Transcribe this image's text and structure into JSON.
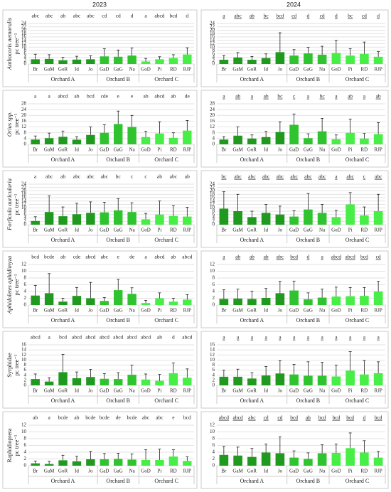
{
  "header": [
    "2023",
    "2024"
  ],
  "chart_data": [
    {
      "type": "bar",
      "ylabel": "Anthocoris nemoralis",
      "yunit": "pc tree⁻¹",
      "italic": true,
      "underline": false,
      "ylim": [
        0,
        24
      ],
      "yticks": [
        0,
        2,
        4,
        6,
        8,
        10,
        12,
        14,
        16,
        18,
        20,
        22,
        24
      ],
      "grid": true,
      "groups": [
        {
          "name": "Orchard A",
          "color": "#1f9a1f",
          "categories": [
            "Br",
            "GaM",
            "GoR",
            "Id",
            "Jo"
          ]
        },
        {
          "name": "Orchard B",
          "color": "#2fc42f",
          "categories": [
            "GaD",
            "GaG",
            "Na"
          ]
        },
        {
          "name": "Orchard C",
          "color": "#46ee46",
          "categories": [
            "GoD",
            "Pi",
            "RD",
            "RJP"
          ]
        }
      ],
      "series": [
        {
          "values": [
            2.8,
            3,
            2.2,
            2.6,
            2.8,
            4.5,
            4.3,
            5,
            1.5,
            2.8,
            3.5,
            5.6
          ],
          "errors": [
            3,
            2.5,
            1.8,
            2,
            2,
            4.5,
            4,
            4.5,
            1.8,
            1.5,
            2,
            4
          ]
        }
      ],
      "annotations": [
        "abc",
        "abc",
        "ab",
        "abc",
        "abc",
        "cd",
        "cd",
        "d",
        "a",
        "abcd",
        "bcd",
        "d"
      ]
    },
    {
      "type": "bar",
      "underline": true,
      "ylim": [
        0,
        24
      ],
      "yticks": [
        0,
        2,
        4,
        6,
        8,
        10,
        12,
        14,
        16,
        18,
        20,
        22,
        24
      ],
      "grid": true,
      "groups": [
        {
          "name": "Orchard A",
          "color": "#1f9a1f",
          "categories": [
            "Br",
            "GaM",
            "GoR",
            "Id",
            "Jo"
          ]
        },
        {
          "name": "Orchard B",
          "color": "#2fc42f",
          "categories": [
            "GaD",
            "GaG",
            "Na"
          ]
        },
        {
          "name": "Orchard C",
          "color": "#46ee46",
          "categories": [
            "GoD",
            "Pi",
            "RD",
            "RJP"
          ]
        }
      ],
      "series": [
        {
          "values": [
            2.5,
            3.8,
            2.5,
            3.5,
            7,
            5,
            6.3,
            5.5,
            6.5,
            5,
            6,
            4.3
          ],
          "errors": [
            2.5,
            3,
            2,
            2.5,
            11.5,
            3.5,
            3.5,
            5,
            7.5,
            4,
            7,
            3
          ]
        }
      ],
      "annotations": [
        "a",
        "abc",
        "ab",
        "bc",
        "bcd",
        "cd",
        "d",
        "cd",
        "d",
        "bc",
        "cd",
        "d"
      ]
    },
    {
      "type": "bar",
      "ylabel": "Orius spp.",
      "yunit": "pc tree⁻¹",
      "italic": true,
      "underline": false,
      "ylim": [
        0,
        28
      ],
      "yticks": [
        0,
        4,
        8,
        12,
        16,
        20,
        24,
        28
      ],
      "grid": true,
      "groups": [
        {
          "name": "Orchard A",
          "color": "#1f9a1f",
          "categories": [
            "Br",
            "GaM",
            "GoR",
            "Id",
            "Jo"
          ]
        },
        {
          "name": "Orchard B",
          "color": "#2fc42f",
          "categories": [
            "GaD",
            "GaG",
            "Na"
          ]
        },
        {
          "name": "Orchard C",
          "color": "#46ee46",
          "categories": [
            "GoD",
            "Pi",
            "RD",
            "RJP"
          ]
        }
      ],
      "series": [
        {
          "values": [
            3.3,
            4.3,
            5.2,
            3.2,
            6.5,
            8,
            14,
            12,
            5,
            7.5,
            4.5,
            9.5
          ],
          "errors": [
            2.5,
            3.5,
            4,
            2,
            5.5,
            5.5,
            9,
            8,
            4,
            8,
            3.5,
            7
          ]
        }
      ],
      "annotations": [
        "a",
        "a",
        "abcd",
        "ab",
        "bcd",
        "cde",
        "e",
        "e",
        "ab",
        "abcd",
        "ab",
        "de"
      ]
    },
    {
      "type": "bar",
      "underline": true,
      "ylim": [
        0,
        28
      ],
      "yticks": [
        0,
        4,
        8,
        12,
        16,
        20,
        24,
        28
      ],
      "grid": true,
      "groups": [
        {
          "name": "Orchard A",
          "color": "#1f9a1f",
          "categories": [
            "Br",
            "GaM",
            "GoR",
            "Id",
            "Jo"
          ]
        },
        {
          "name": "Orchard B",
          "color": "#2fc42f",
          "categories": [
            "GaD",
            "GaG",
            "Na"
          ]
        },
        {
          "name": "Orchard C",
          "color": "#46ee46",
          "categories": [
            "GoD",
            "Pi",
            "RD",
            "RJP"
          ]
        }
      ],
      "series": [
        {
          "values": [
            3.3,
            6,
            4,
            5,
            8.5,
            13.5,
            4.3,
            9,
            3.5,
            8,
            4,
            7
          ],
          "errors": [
            2,
            6,
            2.5,
            4,
            7,
            7.5,
            3,
            9,
            3,
            9.5,
            3.5,
            8
          ]
        }
      ],
      "annotations": [
        "a",
        "ab",
        "a",
        "ab",
        "bc",
        "c",
        "a",
        "bc",
        "a",
        "ab",
        "a",
        "ab"
      ]
    },
    {
      "type": "bar",
      "ylabel": "Forficula auricularia",
      "yunit": "pc tree⁻¹",
      "italic": true,
      "underline": false,
      "ylim": [
        0,
        24
      ],
      "yticks": [
        0,
        2,
        4,
        6,
        8,
        10,
        12,
        14,
        16,
        18,
        20,
        22,
        24
      ],
      "grid": true,
      "groups": [
        {
          "name": "Orchard A",
          "color": "#1f9a1f",
          "categories": [
            "Br",
            "GaM",
            "GoR",
            "Id",
            "Jo"
          ]
        },
        {
          "name": "Orchard B",
          "color": "#2fc42f",
          "categories": [
            "GaD",
            "GaG",
            "Na"
          ]
        },
        {
          "name": "Orchard C",
          "color": "#46ee46",
          "categories": [
            "GoD",
            "Pi",
            "RD",
            "RJP"
          ]
        }
      ],
      "series": [
        {
          "values": [
            2.2,
            7.5,
            5,
            6.2,
            7,
            7.3,
            8.5,
            7.5,
            3.2,
            6,
            5.2,
            4.8
          ],
          "errors": [
            2.5,
            9.5,
            5.5,
            6.5,
            6.5,
            6,
            6.8,
            5.5,
            3.5,
            8,
            6,
            5.5
          ]
        }
      ],
      "annotations": [
        "a",
        "abc",
        "ab",
        "abc",
        "abc",
        "abc",
        "bc",
        "c",
        "c",
        "ab",
        "abc",
        "ab"
      ]
    },
    {
      "type": "bar",
      "underline": true,
      "ylim": [
        0,
        24
      ],
      "yticks": [
        0,
        2,
        4,
        6,
        8,
        10,
        12,
        14,
        16,
        18,
        20,
        22,
        24
      ],
      "grid": true,
      "groups": [
        {
          "name": "Orchard A",
          "color": "#1f9a1f",
          "categories": [
            "Br",
            "GaM",
            "GoR",
            "Id",
            "Jo"
          ]
        },
        {
          "name": "Orchard B",
          "color": "#2fc42f",
          "categories": [
            "GaD",
            "GaG",
            "Na"
          ]
        },
        {
          "name": "Orchard C",
          "color": "#46ee46",
          "categories": [
            "GoD",
            "Pi",
            "RD",
            "RJP"
          ]
        }
      ],
      "series": [
        {
          "values": [
            9.5,
            8,
            4.5,
            7,
            6,
            4.8,
            9,
            7,
            4.5,
            12,
            5.5,
            8
          ],
          "errors": [
            10,
            10,
            3.5,
            5,
            5,
            3.5,
            9.5,
            5,
            4,
            7,
            5,
            10
          ]
        }
      ],
      "annotations": [
        "bc",
        "abc",
        "abc",
        "abc",
        "abc",
        "abc",
        "abc",
        "abc",
        "a",
        "abc",
        "c",
        "abc"
      ]
    },
    {
      "type": "bar",
      "ylabel": "Aphidoletes aphidimyza",
      "yunit": "pc tree⁻¹",
      "italic": true,
      "underline": false,
      "ylim": [
        0,
        12
      ],
      "yticks": [
        0,
        2,
        4,
        6,
        8,
        10,
        12
      ],
      "grid": true,
      "groups": [
        {
          "name": "Orchard A",
          "color": "#1f9a1f",
          "categories": [
            "Br",
            "GaM",
            "GoR",
            "Id",
            "Jo"
          ]
        },
        {
          "name": "Orchard B",
          "color": "#2fc42f",
          "categories": [
            "GaD",
            "GaG",
            "Na"
          ]
        },
        {
          "name": "Orchard C",
          "color": "#46ee46",
          "categories": [
            "GoD",
            "Pi",
            "RD",
            "RJP"
          ]
        }
      ],
      "series": [
        {
          "values": [
            2.8,
            3.5,
            1,
            2.7,
            2,
            1.2,
            4.4,
            3.3,
            0.6,
            2,
            1,
            1.6
          ],
          "errors": [
            3,
            5.8,
            1,
            2.5,
            4.7,
            1,
            3.2,
            1.8,
            0.8,
            1.6,
            1,
            1.5
          ]
        }
      ],
      "annotations": [
        "bcd",
        "bcde",
        "ab",
        "cde",
        "abcd",
        "abc",
        "e",
        "de",
        "a",
        "abcd",
        "ab",
        "abcd"
      ]
    },
    {
      "type": "bar",
      "underline": true,
      "ylim": [
        0,
        12
      ],
      "yticks": [
        0,
        2,
        4,
        6,
        8,
        10,
        12
      ],
      "grid": true,
      "groups": [
        {
          "name": "Orchard A",
          "color": "#1f9a1f",
          "categories": [
            "Br",
            "GaM",
            "GoR",
            "Id",
            "Jo"
          ]
        },
        {
          "name": "Orchard B",
          "color": "#2fc42f",
          "categories": [
            "GaD",
            "GaG",
            "Na"
          ]
        },
        {
          "name": "Orchard C",
          "color": "#46ee46",
          "categories": [
            "GoD",
            "Pi",
            "RD",
            "RJP"
          ]
        }
      ],
      "series": [
        {
          "values": [
            1.8,
            1.9,
            1.8,
            2.1,
            3.5,
            4.3,
            1.7,
            2.2,
            2.5,
            2.6,
            2.7,
            4
          ],
          "errors": [
            2.7,
            2.8,
            2.3,
            2.8,
            3.5,
            2.8,
            1.9,
            2.5,
            2.8,
            2.6,
            2.5,
            3
          ]
        }
      ],
      "annotations": [
        "a",
        "ab",
        "ab",
        "ab",
        "abc",
        "bcd",
        "d",
        "a",
        "abcd",
        "abcd",
        "bcd",
        "cd"
      ]
    },
    {
      "type": "bar",
      "ylabel": "Syrphidae",
      "yunit": "pc tree⁻¹",
      "italic": false,
      "underline": false,
      "ylim": [
        0,
        16
      ],
      "yticks": [
        0,
        2,
        4,
        6,
        8,
        10,
        12,
        14,
        16
      ],
      "grid": true,
      "groups": [
        {
          "name": "Orchard A",
          "color": "#1f9a1f",
          "categories": [
            "Br",
            "GaM",
            "GoR",
            "Id",
            "Jo"
          ]
        },
        {
          "name": "Orchard B",
          "color": "#2fc42f",
          "categories": [
            "GaD",
            "GaG",
            "Na"
          ]
        },
        {
          "name": "Orchard C",
          "color": "#46ee46",
          "categories": [
            "GoD",
            "Pi",
            "RD",
            "RJP"
          ]
        }
      ],
      "series": [
        {
          "values": [
            2.5,
            1.5,
            5.2,
            2.8,
            3.3,
            2.6,
            2.5,
            4.2,
            2.3,
            1.8,
            4.8,
            3
          ],
          "errors": [
            2,
            1.5,
            7,
            2.5,
            3,
            2,
            2.5,
            3.8,
            2.2,
            2.5,
            4,
            3.5
          ]
        }
      ],
      "annotations": [
        "abcd",
        "a",
        "bcd",
        "abcd",
        "abcd",
        "abcd",
        "abcd",
        "abcd",
        "abcd",
        "ab",
        "d",
        "abcd"
      ]
    },
    {
      "type": "bar",
      "underline": true,
      "ylim": [
        0,
        16
      ],
      "yticks": [
        0,
        2,
        4,
        6,
        8,
        10,
        12,
        14,
        16
      ],
      "grid": true,
      "groups": [
        {
          "name": "Orchard A",
          "color": "#1f9a1f",
          "categories": [
            "Br",
            "GaM",
            "GoR",
            "Id",
            "Jo"
          ]
        },
        {
          "name": "Orchard B",
          "color": "#2fc42f",
          "categories": [
            "GaD",
            "GaG",
            "Na"
          ]
        },
        {
          "name": "Orchard C",
          "color": "#46ee46",
          "categories": [
            "GoD",
            "Pi",
            "RD",
            "RJP"
          ]
        }
      ],
      "series": [
        {
          "values": [
            3.4,
            3.4,
            2.7,
            3.9,
            4.7,
            4.3,
            3.8,
            3.8,
            3.5,
            5.8,
            4.3,
            4.8
          ],
          "errors": [
            2.6,
            3,
            2.3,
            3.5,
            5,
            4,
            5.5,
            5.3,
            4.5,
            7.5,
            5.5,
            4.5
          ]
        }
      ],
      "annotations": [
        "a",
        "a",
        "a",
        "a",
        "a",
        "a",
        "a",
        "a",
        "a",
        "a",
        "a",
        "a"
      ]
    },
    {
      "type": "bar",
      "ylabel": "Raphidioptera",
      "yunit": "pc tree⁻¹",
      "italic": false,
      "underline": false,
      "ylim": [
        0,
        12
      ],
      "yticks": [
        0,
        2,
        4,
        6,
        8,
        10,
        12
      ],
      "grid": true,
      "groups": [
        {
          "name": "Orchard A",
          "color": "#1f9a1f",
          "categories": [
            "Br",
            "GaM",
            "GoR",
            "Id",
            "Jo"
          ]
        },
        {
          "name": "Orchard B",
          "color": "#2fc42f",
          "categories": [
            "GaD",
            "GaG",
            "Na"
          ]
        },
        {
          "name": "Orchard C",
          "color": "#46ee46",
          "categories": [
            "GoD",
            "Pi",
            "RD",
            "RJP"
          ]
        }
      ],
      "series": [
        {
          "values": [
            0.7,
            0.5,
            1.6,
            1.3,
            1.9,
            1.9,
            2,
            1.8,
            1.7,
            1.7,
            2.7,
            1.4
          ],
          "errors": [
            0.7,
            0.8,
            1.5,
            1.5,
            2.3,
            1.7,
            1.7,
            1.7,
            3,
            3.2,
            2,
            1.2
          ]
        }
      ],
      "annotations": [
        "ab",
        "a",
        "bcde",
        "ab",
        "bcde",
        "bcde",
        "de",
        "bcde",
        "abc",
        "abc",
        "e",
        "bcd"
      ]
    },
    {
      "type": "bar",
      "underline": true,
      "ylim": [
        0,
        12
      ],
      "yticks": [
        0,
        2,
        4,
        6,
        8,
        10,
        12
      ],
      "grid": true,
      "groups": [
        {
          "name": "Orchard A",
          "color": "#1f9a1f",
          "categories": [
            "Br",
            "GaM",
            "GoR",
            "Id",
            "Jo"
          ]
        },
        {
          "name": "Orchard B",
          "color": "#2fc42f",
          "categories": [
            "GaD",
            "GaG",
            "Na"
          ]
        },
        {
          "name": "Orchard C",
          "color": "#46ee46",
          "categories": [
            "GoD",
            "Pi",
            "RD",
            "RJP"
          ]
        }
      ],
      "series": [
        {
          "values": [
            3.2,
            3,
            2.6,
            3.9,
            3.7,
            2.4,
            2,
            3.7,
            3.8,
            5.2,
            3.9,
            2.4
          ],
          "errors": [
            2.5,
            2.5,
            2.5,
            2.5,
            4.8,
            2,
            1.8,
            2.5,
            2.6,
            4.5,
            3.5,
            1.8
          ]
        }
      ],
      "annotations": [
        "abcd",
        "abcd",
        "abc",
        "cd",
        "cd",
        "bcd",
        "ab",
        "bcd",
        "bcd",
        "bcd",
        "d",
        "bcd"
      ]
    }
  ]
}
